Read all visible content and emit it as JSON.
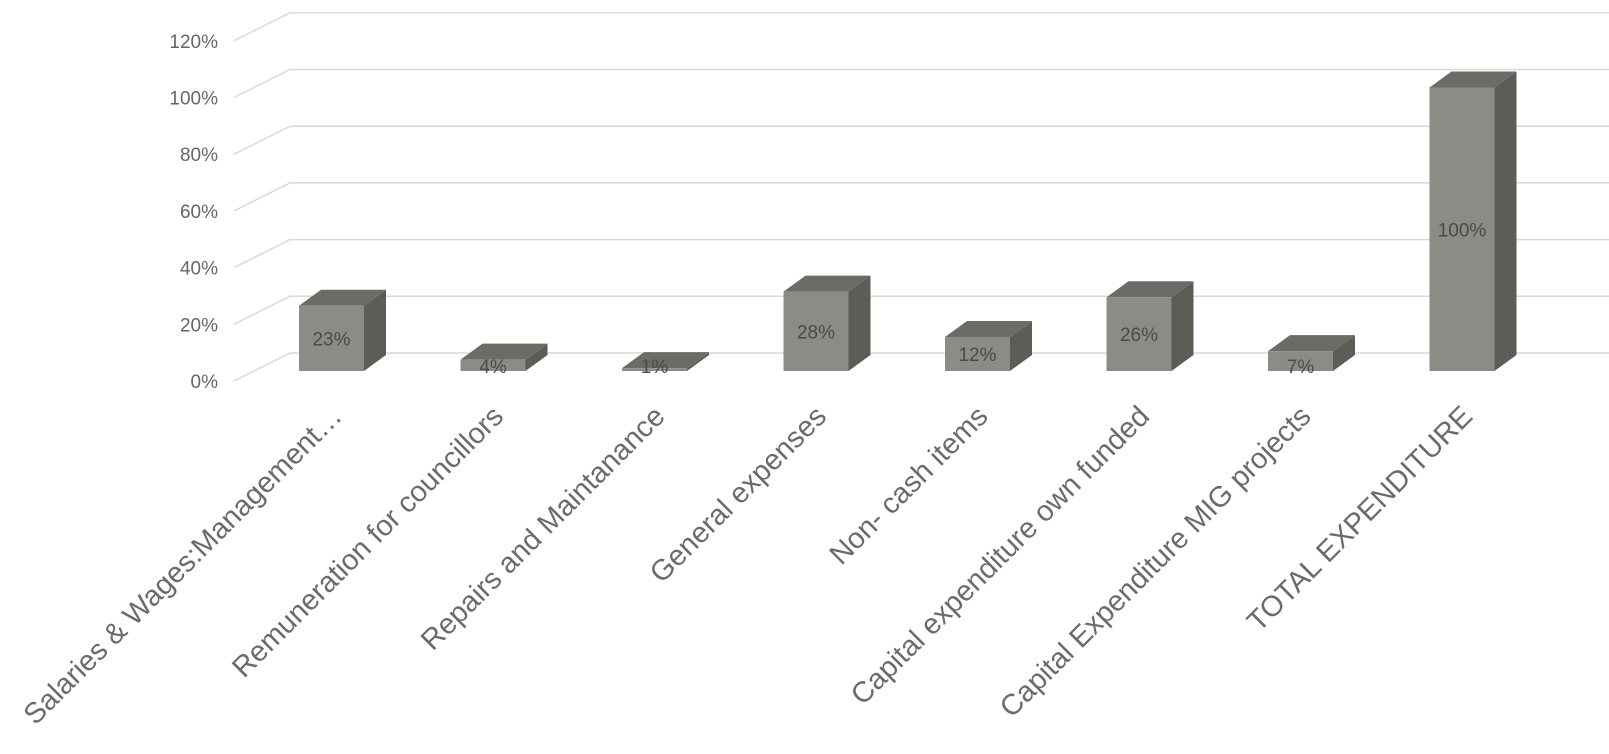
{
  "chart_data": {
    "type": "bar",
    "style": "3d-column",
    "categories": [
      "Salaries & Wages:Management…",
      "Remuneration for councillors",
      "Repairs and Maintanance",
      "General expenses",
      "Non- cash items",
      "Capital expenditure own funded",
      "Capital Expenditure MIG projects",
      "TOTAL EXPENDITURE"
    ],
    "values": [
      23,
      4,
      1,
      28,
      12,
      26,
      7,
      100
    ],
    "data_labels": [
      "23%",
      "4%",
      "1%",
      "28%",
      "12%",
      "26%",
      "7%",
      "100%"
    ],
    "y_ticks": [
      "0%",
      "20%",
      "40%",
      "60%",
      "80%",
      "100%",
      "120%"
    ],
    "ylim": [
      0,
      120
    ],
    "y_unit": "%",
    "grid": true,
    "legend": "none",
    "colors": {
      "bar_front": "#8c8c86",
      "bar_top": "#6b6c66",
      "bar_side": "#5c5d57",
      "grid": "#d9d9d9"
    }
  }
}
